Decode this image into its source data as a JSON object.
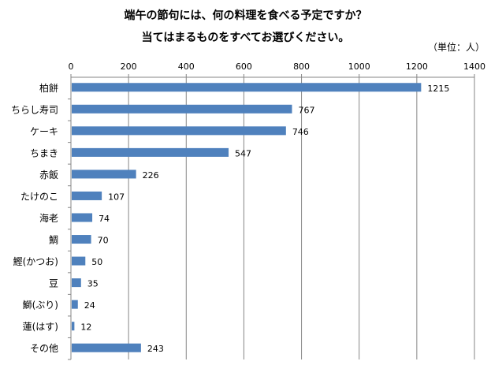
{
  "chart_data": {
    "type": "bar",
    "orientation": "horizontal",
    "title": "端午の節句には、何の料理を食べる予定ですか？",
    "subtitle": "当てはまるものをすべてお選びください。",
    "unit_label": "（単位：人）",
    "xlabel": "",
    "ylabel": "",
    "xlim": [
      0,
      1400
    ],
    "x_ticks": [
      0,
      200,
      400,
      600,
      800,
      1000,
      1200,
      1400
    ],
    "x_axis_position": "top",
    "grid": true,
    "legend": "none",
    "bar_color": "#4f81bd",
    "categories": [
      "柏餅",
      "ちらし寿司",
      "ケーキ",
      "ちまき",
      "赤飯",
      "たけのこ",
      "海老",
      "鯛",
      "鰹(かつお)",
      "豆",
      "鰤(ぶり)",
      "蓮(はす)",
      "その他"
    ],
    "values": [
      1215,
      767,
      746,
      547,
      226,
      107,
      74,
      70,
      50,
      35,
      24,
      12,
      243
    ]
  }
}
